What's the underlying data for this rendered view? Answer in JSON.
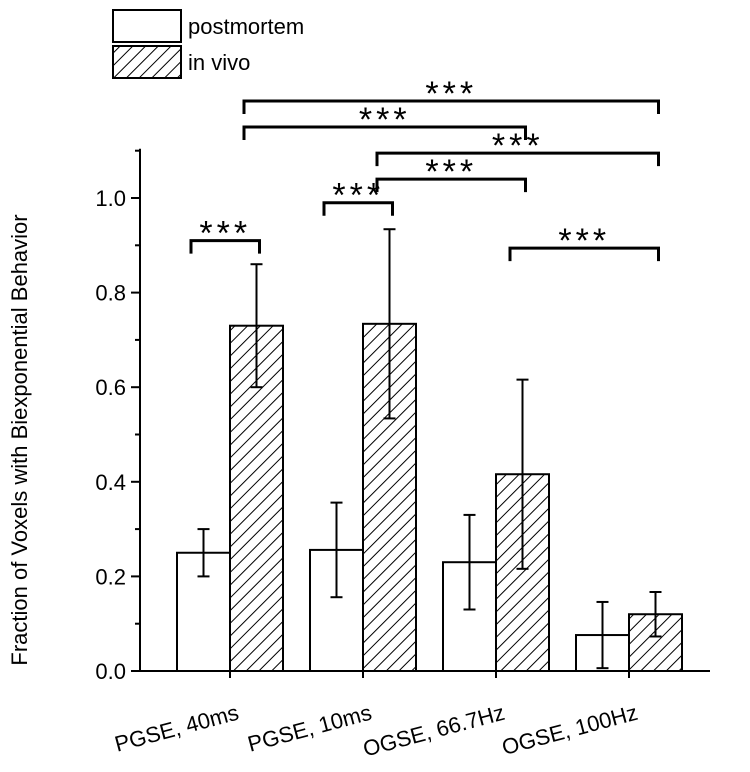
{
  "chart_data": {
    "type": "bar",
    "title": "",
    "xlabel": "",
    "ylabel": "Fraction of Voxels with Biexponential Behavior",
    "ylim": [
      0,
      1.1
    ],
    "yticks": [
      "0.0",
      "0.2",
      "0.4",
      "0.6",
      "0.8",
      "1.0"
    ],
    "categories": [
      "PGSE, 40ms",
      "PGSE, 10ms",
      "OGSE, 66.7Hz",
      "OGSE, 100Hz"
    ],
    "series": [
      {
        "name": "postmortem",
        "pattern": "open",
        "values": [
          0.25,
          0.256,
          0.23,
          0.076
        ],
        "errors": [
          0.05,
          0.1,
          0.1,
          0.07
        ]
      },
      {
        "name": "in vivo",
        "pattern": "hatched",
        "values": [
          0.73,
          0.734,
          0.416,
          0.12
        ],
        "errors": [
          0.13,
          0.2,
          0.2,
          0.047
        ]
      }
    ],
    "legend_position": "top-left",
    "significance": [
      {
        "from": [
          0,
          0
        ],
        "to": [
          0,
          1
        ],
        "level": 0.91,
        "label": "***"
      },
      {
        "from": [
          1,
          0
        ],
        "to": [
          1,
          1
        ],
        "level": 0.99,
        "label": "***"
      },
      {
        "from": [
          1,
          1
        ],
        "to": [
          2,
          1
        ],
        "level": 1.04,
        "label": "***"
      },
      {
        "from": [
          1,
          1
        ],
        "to": [
          3,
          1
        ],
        "level": 1.095,
        "label": "***"
      },
      {
        "from": [
          0,
          1
        ],
        "to": [
          2,
          1
        ],
        "level": 1.15,
        "label": "***"
      },
      {
        "from": [
          0,
          1
        ],
        "to": [
          3,
          1
        ],
        "level": 1.205,
        "label": "***"
      },
      {
        "from": [
          2,
          1
        ],
        "to": [
          3,
          1
        ],
        "level": 0.894,
        "label": "***"
      }
    ]
  }
}
